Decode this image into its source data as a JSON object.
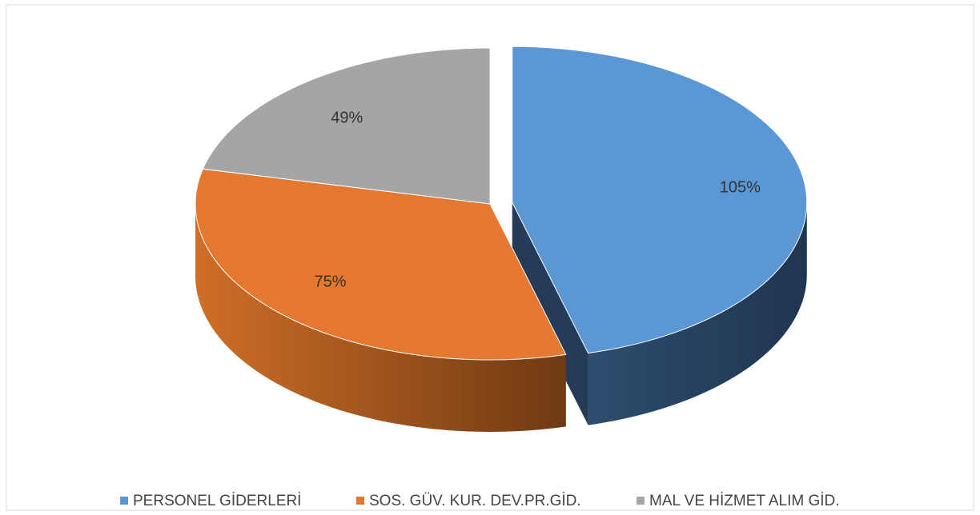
{
  "chart_data": {
    "type": "pie",
    "categories": [
      "PERSONEL GİDERLERİ",
      "SOS. GÜV. KUR. DEV.PR.GİD.",
      "MAL VE HİZMET ALIM GİD."
    ],
    "values": [
      105,
      75,
      49
    ],
    "value_labels": [
      "105%",
      "75%",
      "49%"
    ],
    "colors": [
      "#5b97d5",
      "#e57831",
      "#a5a5a5"
    ],
    "legend": "bottom"
  }
}
